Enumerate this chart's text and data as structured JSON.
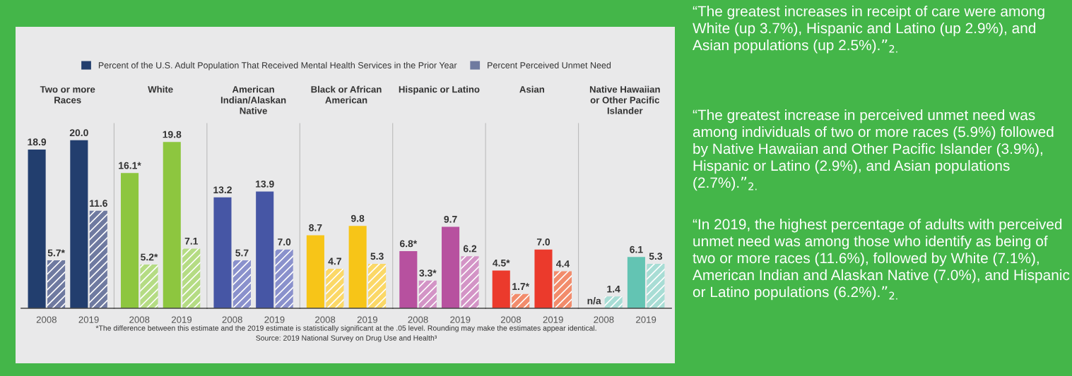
{
  "chart_data": [
    {
      "type": "bar",
      "title": "Two or more\nRaces",
      "categories": [
        "2008",
        "2019"
      ],
      "ylim": [
        0,
        22
      ],
      "tick_labels": "x",
      "legend": "top",
      "annotations": [
        "*The difference between this estimate and the 2019 estimate is statistically significant at the .05 level. Rounding may make the estimates appear identical.",
        "Source: 2019 National Survey on Drug Use and Health³"
      ],
      "series": [
        {
          "name": "Percent of the U.S. Adult Population That Received Mental Health Services in the Prior Year",
          "color": "#223e6e",
          "values": [
            18.9,
            20.0
          ],
          "value_labels": [
            "18.9",
            "20.0"
          ]
        },
        {
          "name": "Percent Perceived Unmet Need",
          "color": "#6f7aa0",
          "values": [
            5.7,
            11.6
          ],
          "value_labels": [
            "5.7*",
            "11.6"
          ]
        }
      ]
    },
    {
      "type": "bar",
      "title": "White",
      "categories": [
        "2008",
        "2019"
      ],
      "ylim": [
        0,
        22
      ],
      "tick_labels": "x",
      "series": [
        {
          "color": "#8dc63f",
          "values": [
            16.1,
            19.8
          ],
          "value_labels": [
            "16.1*",
            "19.8"
          ]
        },
        {
          "color": "#b5dc84",
          "values": [
            5.2,
            7.1
          ],
          "value_labels": [
            "5.2*",
            "7.1"
          ]
        }
      ]
    },
    {
      "type": "bar",
      "title": "American\nIndian/Alaskan\nNative",
      "categories": [
        "2008",
        "2019"
      ],
      "ylim": [
        0,
        22
      ],
      "tick_labels": "x",
      "series": [
        {
          "color": "#4656a5",
          "values": [
            13.2,
            13.9
          ],
          "value_labels": [
            "13.2",
            "13.9"
          ]
        },
        {
          "color": "#8a91cc",
          "values": [
            5.7,
            7.0
          ],
          "value_labels": [
            "5.7",
            "7.0"
          ]
        }
      ]
    },
    {
      "type": "bar",
      "title": "Black or African\nAmerican",
      "categories": [
        "2008",
        "2019"
      ],
      "ylim": [
        0,
        22
      ],
      "tick_labels": "x",
      "series": [
        {
          "color": "#f7c518",
          "values": [
            8.7,
            9.8
          ],
          "value_labels": [
            "8.7",
            "9.8"
          ]
        },
        {
          "color": "#fbd867",
          "values": [
            4.7,
            5.3
          ],
          "value_labels": [
            "4.7",
            "5.3"
          ]
        }
      ]
    },
    {
      "type": "bar",
      "title": "Hispanic or Latino",
      "categories": [
        "2008",
        "2019"
      ],
      "ylim": [
        0,
        22
      ],
      "tick_labels": "x",
      "series": [
        {
          "color": "#b7519f",
          "values": [
            6.8,
            9.7
          ],
          "value_labels": [
            "6.8*",
            "9.7"
          ]
        },
        {
          "color": "#d394c6",
          "values": [
            3.3,
            6.2
          ],
          "value_labels": [
            "3.3*",
            "6.2"
          ]
        }
      ]
    },
    {
      "type": "bar",
      "title": "Asian",
      "categories": [
        "2008",
        "2019"
      ],
      "ylim": [
        0,
        22
      ],
      "tick_labels": "x",
      "series": [
        {
          "color": "#eb3a2c",
          "values": [
            4.5,
            7.0
          ],
          "value_labels": [
            "4.5*",
            "7.0"
          ]
        },
        {
          "color": "#f28c6c",
          "values": [
            1.7,
            4.4
          ],
          "value_labels": [
            "1.7*",
            "4.4"
          ]
        }
      ]
    },
    {
      "type": "bar",
      "title": "Native Hawaiian\nor Other Pacific\nIslander",
      "categories": [
        "2008",
        "2019"
      ],
      "ylim": [
        0,
        22
      ],
      "tick_labels": "x",
      "series": [
        {
          "color": "#63c4b3",
          "values": [
            null,
            6.1
          ],
          "value_labels": [
            "n/a",
            "6.1"
          ]
        },
        {
          "color": "#a8ddd5",
          "values": [
            1.4,
            5.3
          ],
          "value_labels": [
            "1.4",
            "5.3"
          ]
        }
      ]
    },
    {
      "type": "other",
      "annotations": [
        "“The greatest increases in receipt of care were among White (up 3.7%), Hispanic and Latino (up 2.9%), and Asian populations (up 2.5%).”$_{2.}$",
        "“The greatest increase in perceived unmet need was among individuals of two or more races (5.9%) followed by Native Hawaiian and Other Pacific Islander (3.9%), Hispanic or Latino (2.9%), and Asian populations (2.7%).”$_{2.}$",
        "“In 2019, the highest percentage of adults with perceived unmet need was among those who identify as being of two or more races (11.6%), followed by White (7.1%), American Indian and Alaskan Native (7.0%), and Hispanic or Latino populations (6.2%).”$_{2.}$"
      ]
    }
  ]
}
